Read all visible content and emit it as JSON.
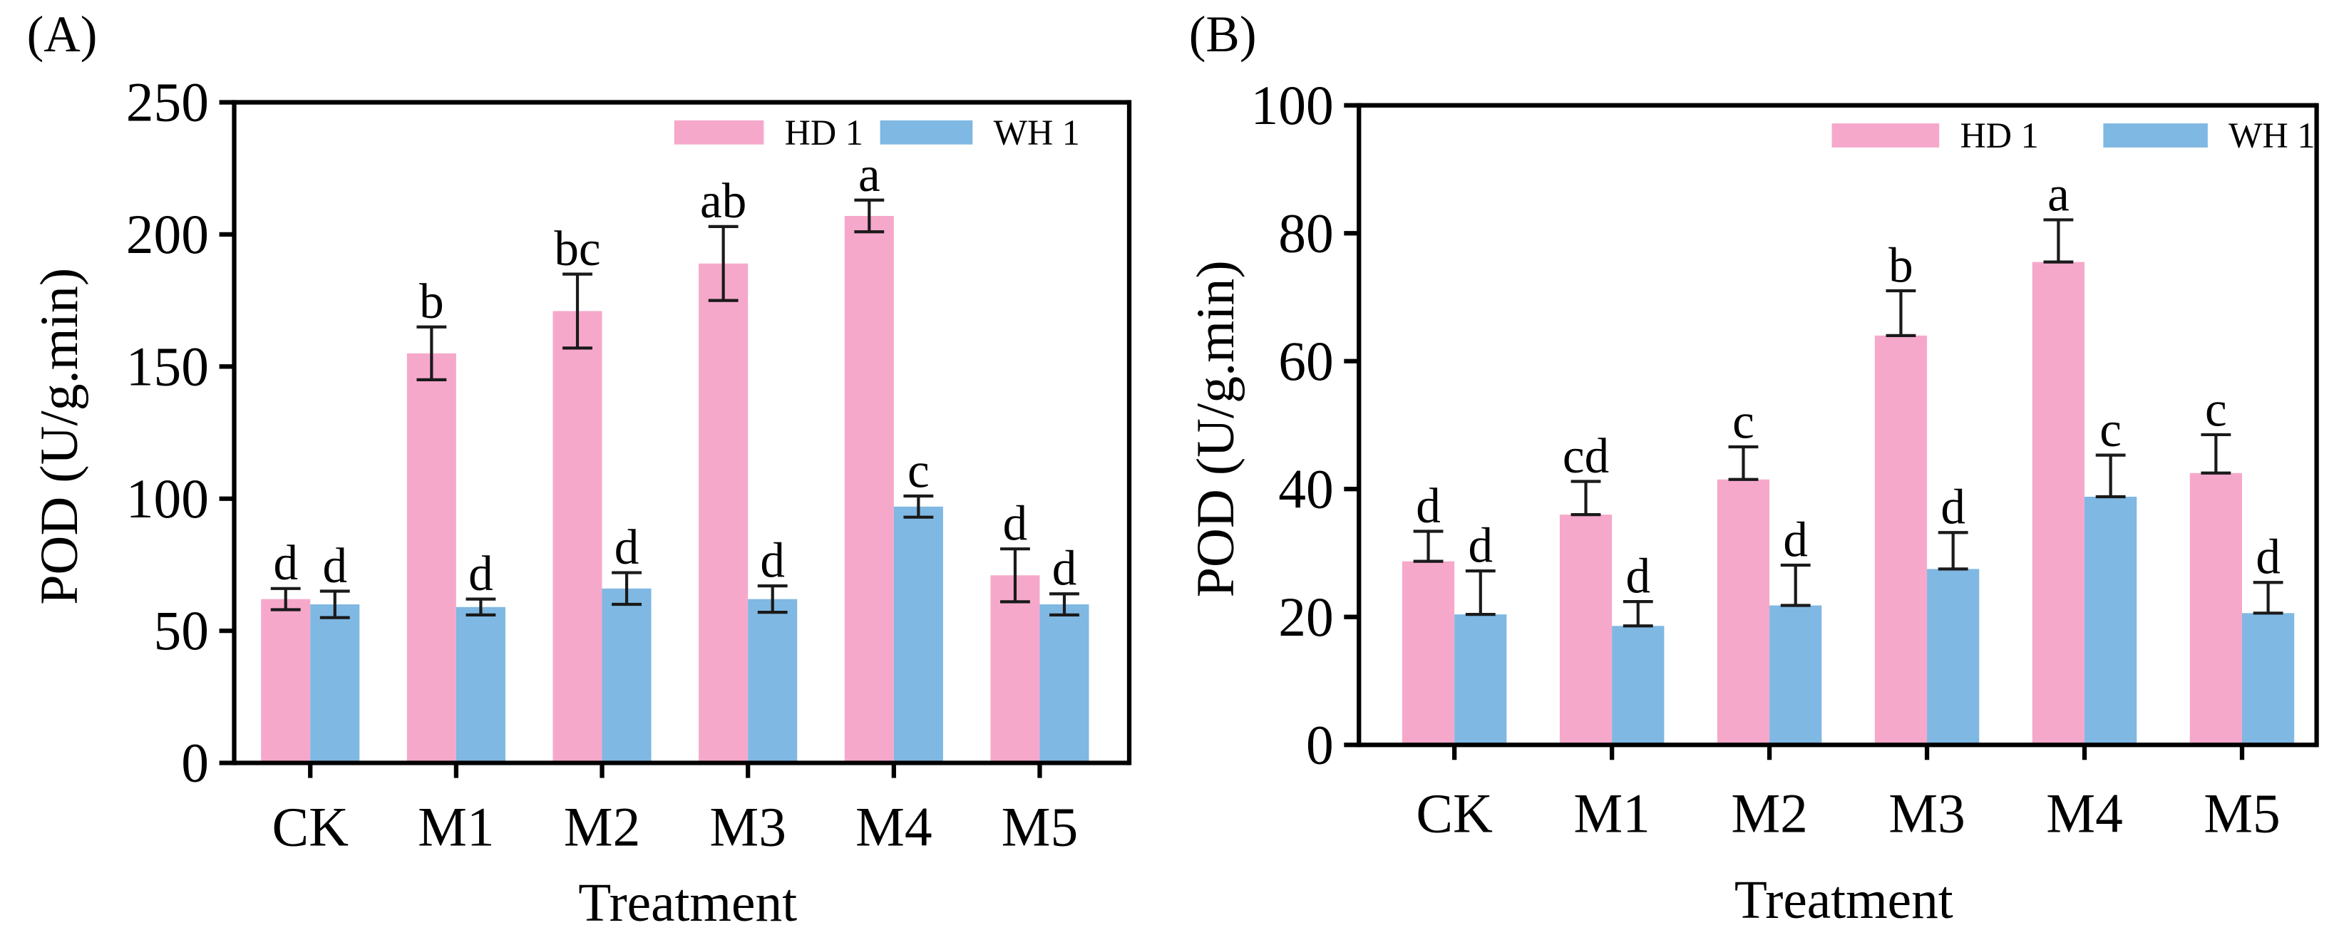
{
  "chart_data": [
    {
      "type": "bar",
      "panel_label": "(A)",
      "categories": [
        "CK",
        "M1",
        "M2",
        "M3",
        "M4",
        "M5"
      ],
      "series": [
        {
          "name": "HD 1",
          "color": "#F6A8CB",
          "values": [
            62,
            155,
            171,
            189,
            207,
            71
          ],
          "errors": [
            4,
            10,
            14,
            14,
            6,
            10
          ],
          "letters": [
            "d",
            "b",
            "bc",
            "ab",
            "a",
            "d"
          ]
        },
        {
          "name": "WH 1",
          "color": "#7FB8E3",
          "values": [
            60,
            59,
            66,
            62,
            97,
            60
          ],
          "errors": [
            5,
            3,
            6,
            5,
            4,
            4
          ],
          "letters": [
            "d",
            "d",
            "d",
            "d",
            "c",
            "d"
          ]
        }
      ],
      "errors_upper_only": false,
      "xlabel": "Treatment",
      "ylabel": "POD (U/g.min)",
      "ylim": [
        0,
        250
      ],
      "yticks": [
        0,
        50,
        100,
        150,
        200,
        250
      ],
      "legend": "top-right"
    },
    {
      "type": "bar",
      "panel_label": "(B)",
      "categories": [
        "CK",
        "M1",
        "M2",
        "M3",
        "M4",
        "M5"
      ],
      "series": [
        {
          "name": "HD 1",
          "color": "#F6A8CB",
          "values": [
            28.7,
            36.0,
            41.5,
            64.0,
            75.5,
            42.5
          ],
          "errors": [
            4.7,
            5.2,
            5.1,
            7.0,
            6.6,
            6.0
          ],
          "letters": [
            "d",
            "cd",
            "c",
            "b",
            "a",
            "c"
          ]
        },
        {
          "name": "WH 1",
          "color": "#7FB8E3",
          "values": [
            20.4,
            18.6,
            21.8,
            27.5,
            38.8,
            20.6
          ],
          "errors": [
            6.8,
            3.8,
            6.3,
            5.7,
            6.5,
            4.8
          ],
          "letters": [
            "d",
            "d",
            "d",
            "d",
            "c",
            "d"
          ]
        }
      ],
      "errors_upper_only": true,
      "xlabel": "Treatment",
      "ylabel": "POD (U/g.min)",
      "ylim": [
        0,
        100
      ],
      "yticks": [
        0,
        20,
        40,
        60,
        80,
        100
      ],
      "legend": "top-right"
    }
  ]
}
